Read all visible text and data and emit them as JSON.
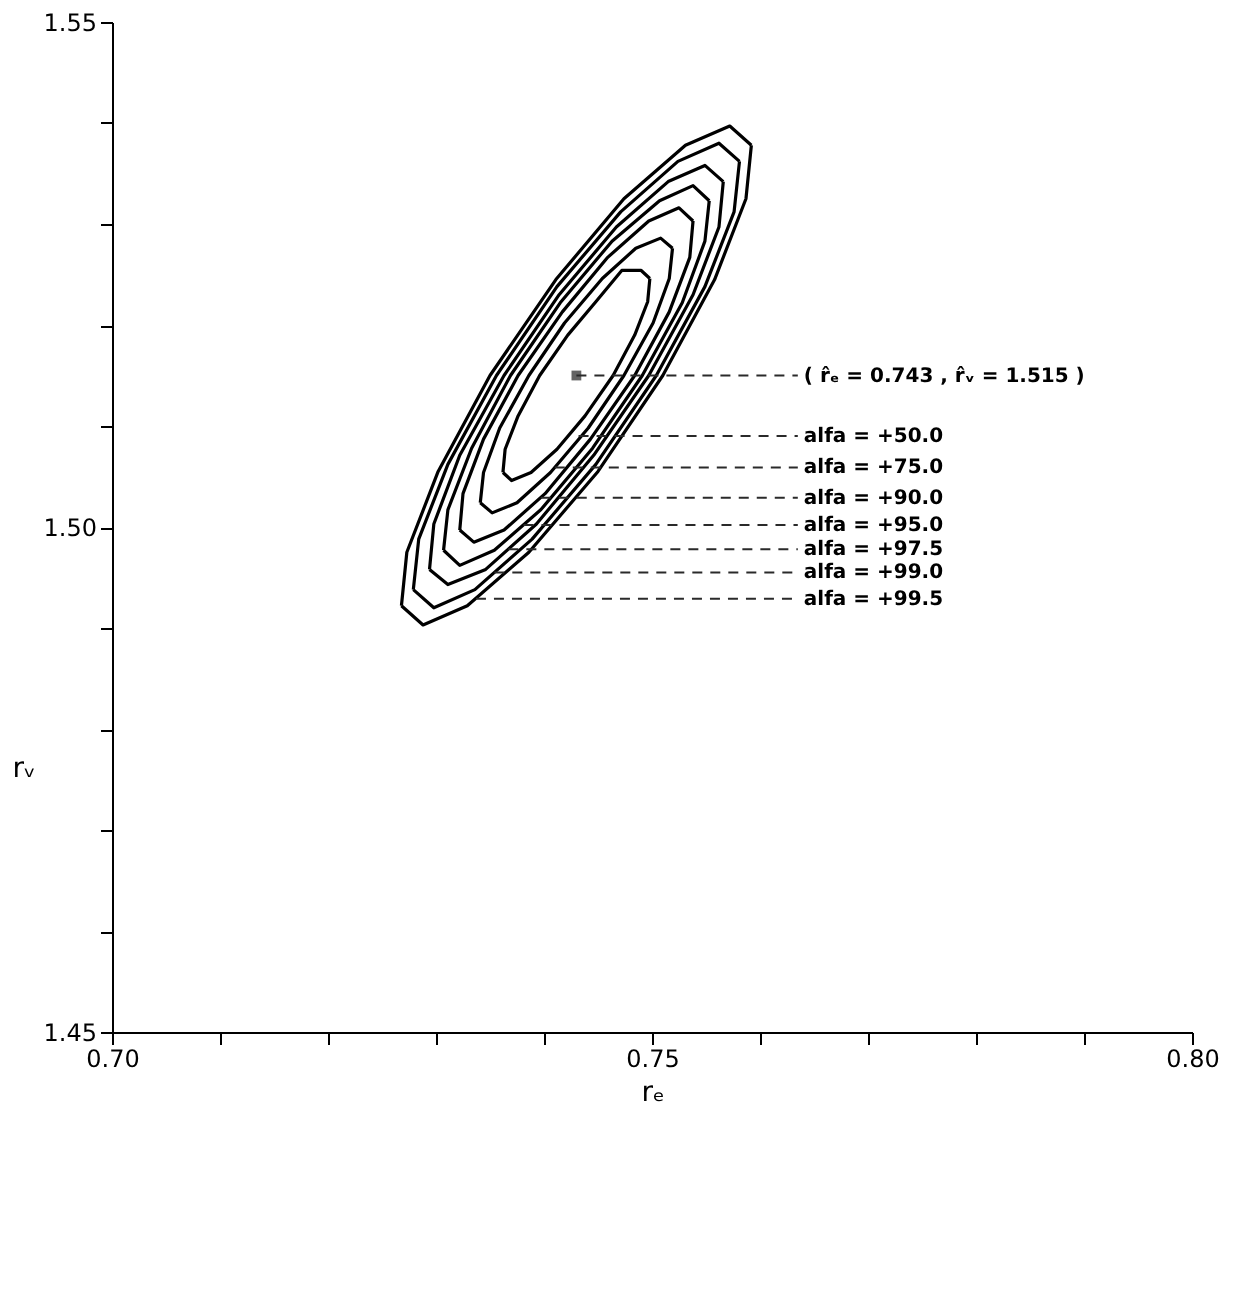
{
  "chart_data": {
    "type": "line",
    "xlabel": "rₑ",
    "ylabel": "rᵥ",
    "xlim": [
      0.7,
      0.8
    ],
    "ylim": [
      1.45,
      1.55
    ],
    "xticks": [
      {
        "value": 0.7,
        "label": "0.70"
      },
      {
        "value": 0.71,
        "label": null
      },
      {
        "value": 0.72,
        "label": null
      },
      {
        "value": 0.73,
        "label": null
      },
      {
        "value": 0.74,
        "label": null
      },
      {
        "value": 0.75,
        "label": "0.75"
      },
      {
        "value": 0.76,
        "label": null
      },
      {
        "value": 0.77,
        "label": null
      },
      {
        "value": 0.78,
        "label": null
      },
      {
        "value": 0.79,
        "label": null
      },
      {
        "value": 0.8,
        "label": "0.80"
      }
    ],
    "yticks": [
      {
        "value": 1.45,
        "label": "1.45"
      },
      {
        "value": 1.46,
        "label": null
      },
      {
        "value": 1.47,
        "label": null
      },
      {
        "value": 1.48,
        "label": null
      },
      {
        "value": 1.49,
        "label": null
      },
      {
        "value": 1.5,
        "label": "1.50"
      },
      {
        "value": 1.51,
        "label": null
      },
      {
        "value": 1.52,
        "label": null
      },
      {
        "value": 1.53,
        "label": null
      },
      {
        "value": 1.54,
        "label": null
      },
      {
        "value": 1.55,
        "label": "1.55"
      }
    ],
    "grid": false,
    "line_style": "solid",
    "series": [
      {
        "color": "#000000",
        "marker": "none",
        "x": [
          0.7268,
          0.7288,
          0.7329,
          0.7386,
          0.745,
          0.751,
          0.7558,
          0.7587,
          0.7592
        ],
        "values": [
          1.4922,
          1.4903,
          1.4922,
          1.4975,
          1.5055,
          1.515,
          1.5245,
          1.5325,
          1.5378
        ]
      },
      {
        "color": "#000000",
        "marker": "none",
        "x": [
          0.7268,
          0.7273,
          0.7302,
          0.735,
          0.7411,
          0.7474,
          0.7531,
          0.7572,
          0.7592
        ],
        "values": [
          1.4922,
          1.4975,
          1.5055,
          1.515,
          1.5245,
          1.5325,
          1.5378,
          1.5397,
          1.5378
        ]
      },
      {
        "color": "#000000",
        "marker": "none",
        "x": [
          0.7279,
          0.7298,
          0.7336,
          0.7389,
          0.7448,
          0.7504,
          0.7549,
          0.7576,
          0.7581
        ],
        "values": [
          1.4938,
          1.492,
          1.4938,
          1.4988,
          1.5062,
          1.515,
          1.5238,
          1.5312,
          1.5362
        ]
      },
      {
        "color": "#000000",
        "marker": "none",
        "x": [
          0.7279,
          0.7284,
          0.7311,
          0.7356,
          0.7412,
          0.7471,
          0.7524,
          0.7562,
          0.7581
        ],
        "values": [
          1.4938,
          1.4988,
          1.5062,
          1.515,
          1.5238,
          1.5312,
          1.5362,
          1.538,
          1.5362
        ]
      },
      {
        "color": "#000000",
        "marker": "none",
        "x": [
          0.7294,
          0.7311,
          0.7346,
          0.7393,
          0.7446,
          0.7497,
          0.7538,
          0.7562,
          0.7566
        ],
        "values": [
          1.4958,
          1.4943,
          1.4958,
          1.5003,
          1.5071,
          1.515,
          1.523,
          1.5297,
          1.5342
        ]
      },
      {
        "color": "#000000",
        "marker": "none",
        "x": [
          0.7294,
          0.7298,
          0.7322,
          0.7363,
          0.7414,
          0.7467,
          0.7515,
          0.7549,
          0.7566
        ],
        "values": [
          1.4958,
          1.5003,
          1.5071,
          1.515,
          1.523,
          1.5297,
          1.5342,
          1.5358,
          1.5342
        ]
      },
      {
        "color": "#000000",
        "marker": "none",
        "x": [
          0.7307,
          0.7322,
          0.7354,
          0.7397,
          0.7445,
          0.7491,
          0.7528,
          0.7549,
          0.7553
        ],
        "values": [
          1.4977,
          1.4962,
          1.4977,
          1.5017,
          1.5078,
          1.515,
          1.5222,
          1.5283,
          1.5323
        ]
      },
      {
        "color": "#000000",
        "marker": "none",
        "x": [
          0.7307,
          0.7311,
          0.7333,
          0.7369,
          0.7415,
          0.7463,
          0.7507,
          0.7538,
          0.7553
        ],
        "values": [
          1.4977,
          1.5017,
          1.5078,
          1.515,
          1.5222,
          1.5283,
          1.5323,
          1.5338,
          1.5323
        ]
      },
      {
        "color": "#000000",
        "marker": "none",
        "x": [
          0.7322,
          0.7335,
          0.7363,
          0.7401,
          0.7443,
          0.7484,
          0.7516,
          0.7535,
          0.7538
        ],
        "values": [
          1.4997,
          1.4985,
          1.4997,
          1.5033,
          1.5087,
          1.515,
          1.5213,
          1.5267,
          1.5303
        ]
      },
      {
        "color": "#000000",
        "marker": "none",
        "x": [
          0.7322,
          0.7325,
          0.7344,
          0.7376,
          0.7417,
          0.7459,
          0.7497,
          0.7525,
          0.7538
        ],
        "values": [
          1.4997,
          1.5033,
          1.5087,
          1.515,
          1.5213,
          1.5267,
          1.5303,
          1.5316,
          1.5303
        ]
      },
      {
        "color": "#000000",
        "marker": "none",
        "x": [
          0.7341,
          0.7352,
          0.7375,
          0.7406,
          0.7441,
          0.7474,
          0.7501,
          0.7516,
          0.7519
        ],
        "values": [
          1.5024,
          1.5014,
          1.5024,
          1.5054,
          1.5098,
          1.515,
          1.5202,
          1.5246,
          1.5276
        ]
      },
      {
        "color": "#000000",
        "marker": "none",
        "x": [
          0.7341,
          0.7344,
          0.7359,
          0.7386,
          0.7419,
          0.7454,
          0.7485,
          0.7508,
          0.7519
        ],
        "values": [
          1.5024,
          1.5054,
          1.5098,
          1.515,
          1.5202,
          1.5246,
          1.5276,
          1.5286,
          1.5276
        ]
      },
      {
        "color": "#000000",
        "marker": "none",
        "x": [
          0.7362,
          0.737,
          0.7388,
          0.7412,
          0.7438,
          0.7464,
          0.7484,
          0.7496,
          0.7498
        ],
        "values": [
          1.5054,
          1.5046,
          1.5054,
          1.5077,
          1.511,
          1.515,
          1.519,
          1.5223,
          1.5246
        ]
      },
      {
        "color": "#000000",
        "marker": "none",
        "x": [
          0.7362,
          0.7364,
          0.7376,
          0.7396,
          0.7422,
          0.7448,
          0.7472,
          0.749,
          0.7498
        ],
        "values": [
          1.5054,
          1.5077,
          1.511,
          1.515,
          1.519,
          1.5223,
          1.5254,
          1.5254,
          1.5246
        ]
      },
      {
        "type": "scatter",
        "color": "#222222",
        "marker": "square",
        "x": [
          0.743
        ],
        "values": [
          1.515
        ]
      }
    ],
    "annotations": [
      {
        "text": "( r̂ₑ = 0.743 , r̂ᵥ = 1.515 )",
        "x": 0.743,
        "y": 1.515
      },
      {
        "text": "alfa = +50.0",
        "x": 0.7432,
        "y": 1.509
      },
      {
        "text": "alfa = +75.0",
        "x": 0.741,
        "y": 1.5059
      },
      {
        "text": "alfa = +90.0",
        "x": 0.7397,
        "y": 1.5029
      },
      {
        "text": "alfa = +95.0",
        "x": 0.7381,
        "y": 1.5002
      },
      {
        "text": "alfa = +97.5",
        "x": 0.7367,
        "y": 1.4978
      },
      {
        "text": "alfa = +99.0",
        "x": 0.7354,
        "y": 1.4955
      },
      {
        "text": "alfa = +99.5",
        "x": 0.7337,
        "y": 1.4929
      }
    ]
  }
}
